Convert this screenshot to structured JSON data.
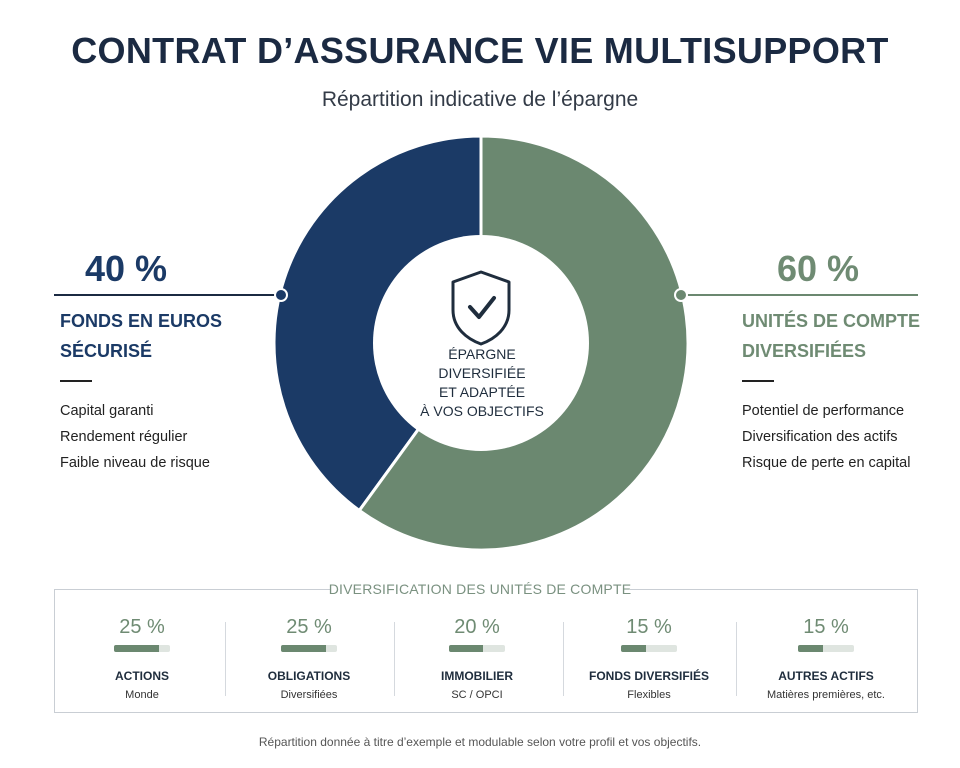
{
  "header": {
    "title": "CONTRAT D’ASSURANCE VIE MULTISUPPORT",
    "subtitle": "Répartition indicative de l’épargne"
  },
  "colors": {
    "euro_fund": "#1b3a66",
    "unit_linked": "#6b8870",
    "text_dark": "#1f2d3d"
  },
  "center": {
    "icon": "shield-check-icon",
    "lines": [
      "ÉPARGNE",
      "DIVERSIFIÉE",
      "ET ADAPTÉE",
      "À VOS OBJECTIFS"
    ]
  },
  "left": {
    "percent": "40 %",
    "title_lines": [
      "FONDS EN EUROS",
      "SÉCURISÉ"
    ],
    "points": [
      "Capital garanti",
      "Rendement régulier",
      "Faible niveau de risque"
    ]
  },
  "right": {
    "percent": "60 %",
    "title_lines": [
      "UNITÉS DE COMPTE",
      "DIVERSIFIÉES"
    ],
    "points": [
      "Potentiel de performance",
      "Diversification des actifs",
      "Risque de perte en capital"
    ]
  },
  "units": {
    "title": "DIVERSIFICATION DES UNITÉS DE COMPTE",
    "items": [
      {
        "percent": "25 %",
        "name": "ACTIONS",
        "sub": "Monde",
        "fill": 0.8
      },
      {
        "percent": "25 %",
        "name": "OBLIGATIONS",
        "sub": "Diversifiées",
        "fill": 0.8
      },
      {
        "percent": "20 %",
        "name": "IMMOBILIER",
        "sub": "SC / OPCI",
        "fill": 0.6
      },
      {
        "percent": "15 %",
        "name": "FONDS DIVERSIFIÉS",
        "sub": "Flexibles",
        "fill": 0.45
      },
      {
        "percent": "15 %",
        "name": "AUTRES ACTIFS",
        "sub": "Matières premières, etc.",
        "fill": 0.45
      }
    ]
  },
  "footnote": "Répartition donnée à titre d’exemple et modulable selon votre profil et vos objectifs.",
  "chart_data": [
    {
      "type": "pie",
      "categories": [
        "FONDS EN EUROS SÉCURISÉ",
        "UNITÉS DE COMPTE DIVERSIFIÉES"
      ],
      "values": [
        40,
        60
      ]
    },
    {
      "type": "bar",
      "title": "DIVERSIFICATION DES UNITÉS DE COMPTE",
      "categories": [
        "ACTIONS",
        "OBLIGATIONS",
        "IMMOBILIER",
        "FONDS DIVERSIFIÉS",
        "AUTRES ACTIFS"
      ],
      "values": [
        25,
        25,
        20,
        15,
        15
      ]
    }
  ]
}
